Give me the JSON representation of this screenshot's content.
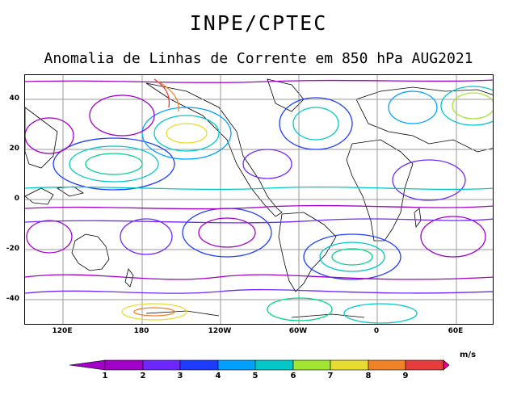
{
  "header": {
    "org": "INPE/CPTEC"
  },
  "title": "Anomalia de Linhas de Corrente em 850 hPa AUG2021",
  "map": {
    "latitude_labels": [
      "40",
      "20",
      "0",
      "-20",
      "-40"
    ],
    "longitude_labels": [
      "120E",
      "180",
      "120W",
      "60W",
      "0",
      "60E"
    ],
    "grid": true
  },
  "legend": {
    "units": "m/s",
    "ticks": [
      "1",
      "2",
      "3",
      "4",
      "5",
      "6",
      "7",
      "8",
      "9"
    ],
    "colors": [
      "#a000c8",
      "#6e28ff",
      "#1e3cff",
      "#00a0ff",
      "#00c8c8",
      "#00d28c",
      "#a0e632",
      "#e6dc32",
      "#f08228",
      "#e63c3c",
      "#f00082"
    ]
  }
}
